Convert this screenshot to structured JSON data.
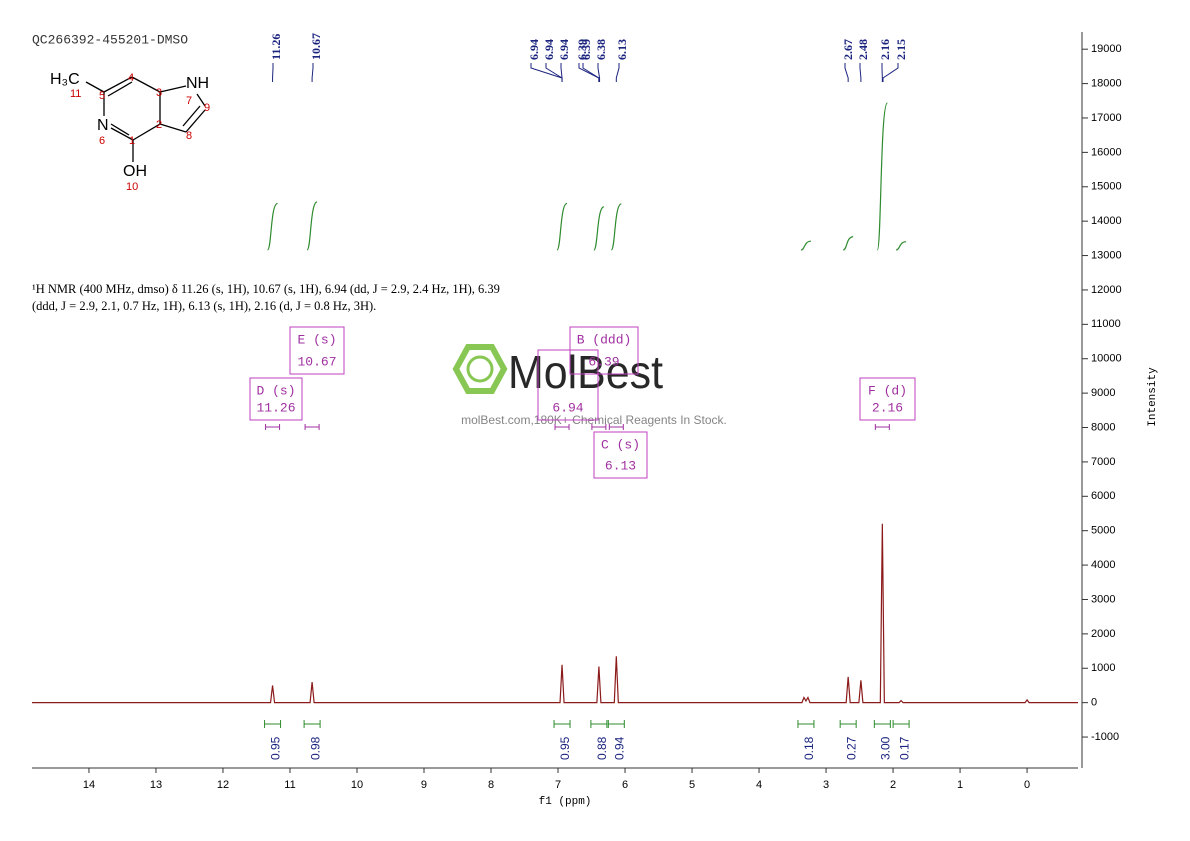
{
  "sample_id": "QC266392-455201-DMSO",
  "structure": {
    "atoms": [
      "H₃C",
      "NH",
      "N",
      "OH"
    ],
    "numbers": [
      11,
      5,
      4,
      3,
      7,
      9,
      8,
      2,
      1,
      6,
      10
    ]
  },
  "description": [
    "¹H NMR (400 MHz, dmso) δ 11.26 (s, 1H), 10.67 (s, 1H), 6.94 (dd, J = 2.9, 2.4 Hz, 1H), 6.39",
    "(ddd, J = 2.9, 2.1, 0.7 Hz, 1H), 6.13 (s, 1H), 2.16 (d, J = 0.8 Hz, 3H)."
  ],
  "watermark": {
    "brand": "MolBest",
    "tagline": "molBest.com,180K+ Chemical Reagents In Stock."
  },
  "chart_data": {
    "type": "line",
    "x_label": "f1 (ppm)",
    "y_label": "Intensity",
    "xlim": [
      14.85,
      -0.76
    ],
    "xticks": [
      14,
      13,
      12,
      11,
      10,
      9,
      8,
      7,
      6,
      5,
      4,
      3,
      2,
      1,
      0
    ],
    "ylim": [
      -1900,
      19500
    ],
    "yticks": [
      -1000,
      0,
      1000,
      2000,
      3000,
      4000,
      5000,
      6000,
      7000,
      8000,
      9000,
      10000,
      11000,
      12000,
      13000,
      14000,
      15000,
      16000,
      17000,
      18000,
      19000
    ],
    "series": [
      {
        "color": "#8b1a1a",
        "x": [
          14.85,
          11.29,
          11.26,
          11.23,
          10.7,
          10.67,
          10.64,
          6.97,
          6.94,
          6.91,
          6.42,
          6.39,
          6.36,
          6.16,
          6.13,
          6.1,
          3.36,
          3.33,
          3.3,
          3.27,
          3.24,
          2.7,
          2.67,
          2.64,
          2.51,
          2.48,
          2.45,
          2.19,
          2.16,
          2.13,
          1.91,
          1.88,
          1.85,
          0.03,
          0,
          -0.03,
          -0.76
        ],
        "values": [
          0,
          0,
          500,
          0,
          0,
          600,
          0,
          0,
          1100,
          0,
          0,
          1050,
          0,
          0,
          1350,
          0,
          0,
          150,
          50,
          150,
          0,
          0,
          750,
          0,
          0,
          650,
          0,
          0,
          5200,
          0,
          0,
          60,
          0,
          0,
          80,
          0,
          0
        ]
      }
    ],
    "peak_labels": [
      11.26,
      10.67,
      6.94,
      6.94,
      6.94,
      6.39,
      6.39,
      6.38,
      6.13,
      2.67,
      2.48,
      2.16,
      2.15
    ],
    "integrals": {
      "x": [
        11.26,
        10.67,
        6.94,
        6.39,
        6.13,
        3.3,
        2.67,
        2.16,
        1.88
      ],
      "values": [
        0.95,
        0.98,
        0.95,
        0.88,
        0.94,
        0.18,
        0.27,
        {
          "value": 3,
          "label": "3.00"
        },
        0.17
      ],
      "color": "#2e8b2e"
    },
    "multiplets": [
      {
        "name": "D (s)",
        "shift": 11.26
      },
      {
        "name": "E (s)",
        "shift": 10.67
      },
      {
        "shift": 6.94
      },
      {
        "name": "B (ddd)",
        "shift": 6.39
      },
      {
        "name": "C (s)",
        "shift": 6.13
      },
      {
        "name": "F (d)",
        "shift": 2.16
      }
    ]
  }
}
